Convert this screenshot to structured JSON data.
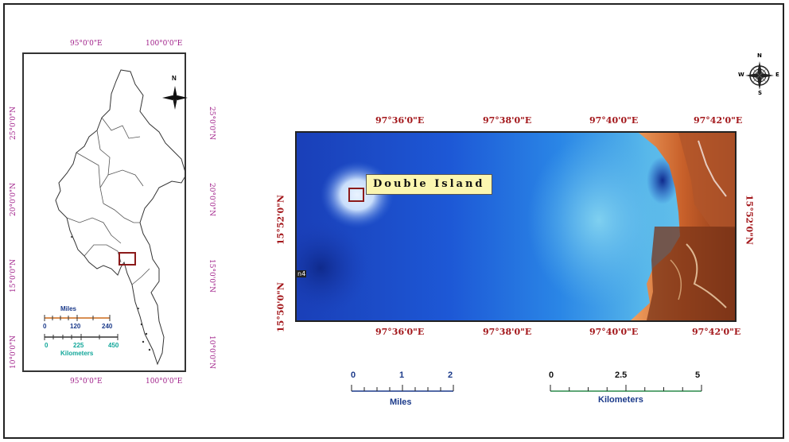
{
  "inset_map": {
    "top_lon": [
      "95°0'0\"E",
      "100°0'0\"E"
    ],
    "bottom_lon": [
      "95°0'0\"E",
      "100°0'0\"E"
    ],
    "left_lat": [
      "25°0'0\"N",
      "20°0'0\"N",
      "15°0'0\"N",
      "10°0'0\"N"
    ],
    "right_lat": [
      "25°0'0\"N",
      "20°0'0\"N",
      "15°0'0\"N",
      "10°0'0\"N"
    ],
    "north_label": "N",
    "scale_miles": {
      "title": "Miles",
      "ticks": [
        "0",
        "120",
        "240"
      ]
    },
    "scale_km": {
      "title": "Kilometers",
      "ticks": [
        "0",
        "225",
        "450"
      ]
    }
  },
  "main_map": {
    "top_lon": [
      "97°36'0\"E",
      "97°38'0\"E",
      "97°40'0\"E",
      "97°42'0\"E"
    ],
    "bottom_lon": [
      "97°36'0\"E",
      "97°38'0\"E",
      "97°40'0\"E",
      "97°42'0\"E"
    ],
    "left_lat": [
      "15°52'0\"N",
      "15°50'0\"N"
    ],
    "right_lat": [
      "15°52'0\"N"
    ],
    "feature_label": "Double Island",
    "edge_mark": "n4"
  },
  "compass": {
    "n": "N",
    "s": "S",
    "e": "E",
    "w": "W"
  },
  "scale_miles": {
    "title": "Miles",
    "ticks": [
      "0",
      "1",
      "2"
    ]
  },
  "scale_km": {
    "title": "Kilometers",
    "ticks": [
      "0",
      "2.5",
      "5"
    ]
  },
  "colors": {
    "graticule_magenta": "#a0208a",
    "graticule_red": "#a3171b",
    "highlight_box": "#8b1a1a",
    "label_bg": "#fbf6b0"
  }
}
